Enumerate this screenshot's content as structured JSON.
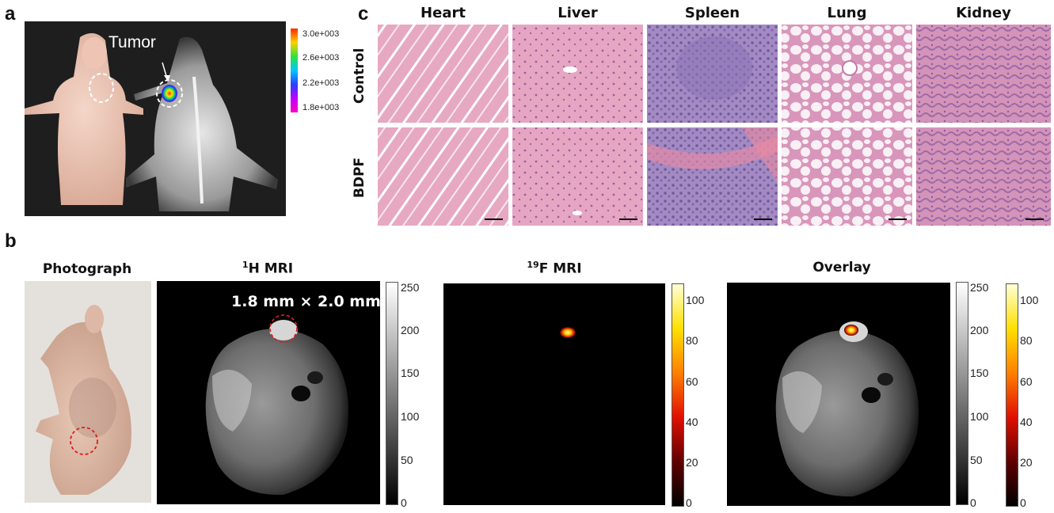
{
  "panels": {
    "a": {
      "letter": "a",
      "tumor_label": "Tumor",
      "colorbar_ticks": [
        "3.0e+003",
        "2.6e+003",
        "2.2e+003",
        "1.8e+003"
      ],
      "colorbar_colors": [
        "#ff2a00",
        "#ffd000",
        "#30e040",
        "#00c8ff",
        "#2a40ff",
        "#c000ff",
        "#ff00c0"
      ]
    },
    "b": {
      "letter": "b",
      "titles": {
        "photo": "Photograph",
        "h_mri_sup": "1",
        "h_mri": "H MRI",
        "f_mri_sup": "19",
        "f_mri": "F MRI",
        "overlay": "Overlay"
      },
      "size_annotation": "1.8 mm × 2.0 mm",
      "gray_ticks": [
        "250",
        "200",
        "150",
        "100",
        "50",
        "0"
      ],
      "hot_ticks": [
        "100",
        "80",
        "60",
        "40",
        "20",
        "0"
      ]
    },
    "c": {
      "letter": "c",
      "columns": [
        "Heart",
        "Liver",
        "Spleen",
        "Lung",
        "Kidney"
      ],
      "rows": [
        "Control",
        "BDPF"
      ]
    }
  }
}
